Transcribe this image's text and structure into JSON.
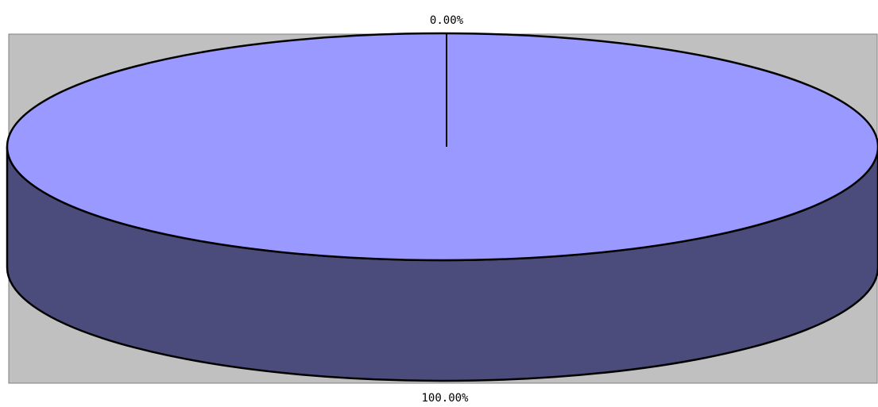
{
  "chart_data": {
    "type": "pie",
    "style": "3d",
    "slices": [
      {
        "value": 0.0,
        "label": "0.00%",
        "color": "#9999ff",
        "side_color": "#4b4b7c"
      },
      {
        "value": 100.0,
        "label": "100.00%",
        "color": "#9999ff",
        "side_color": "#4b4b7c"
      }
    ],
    "plot_background": "#c0c0c0",
    "outline_color": "#000000",
    "legend": false
  }
}
